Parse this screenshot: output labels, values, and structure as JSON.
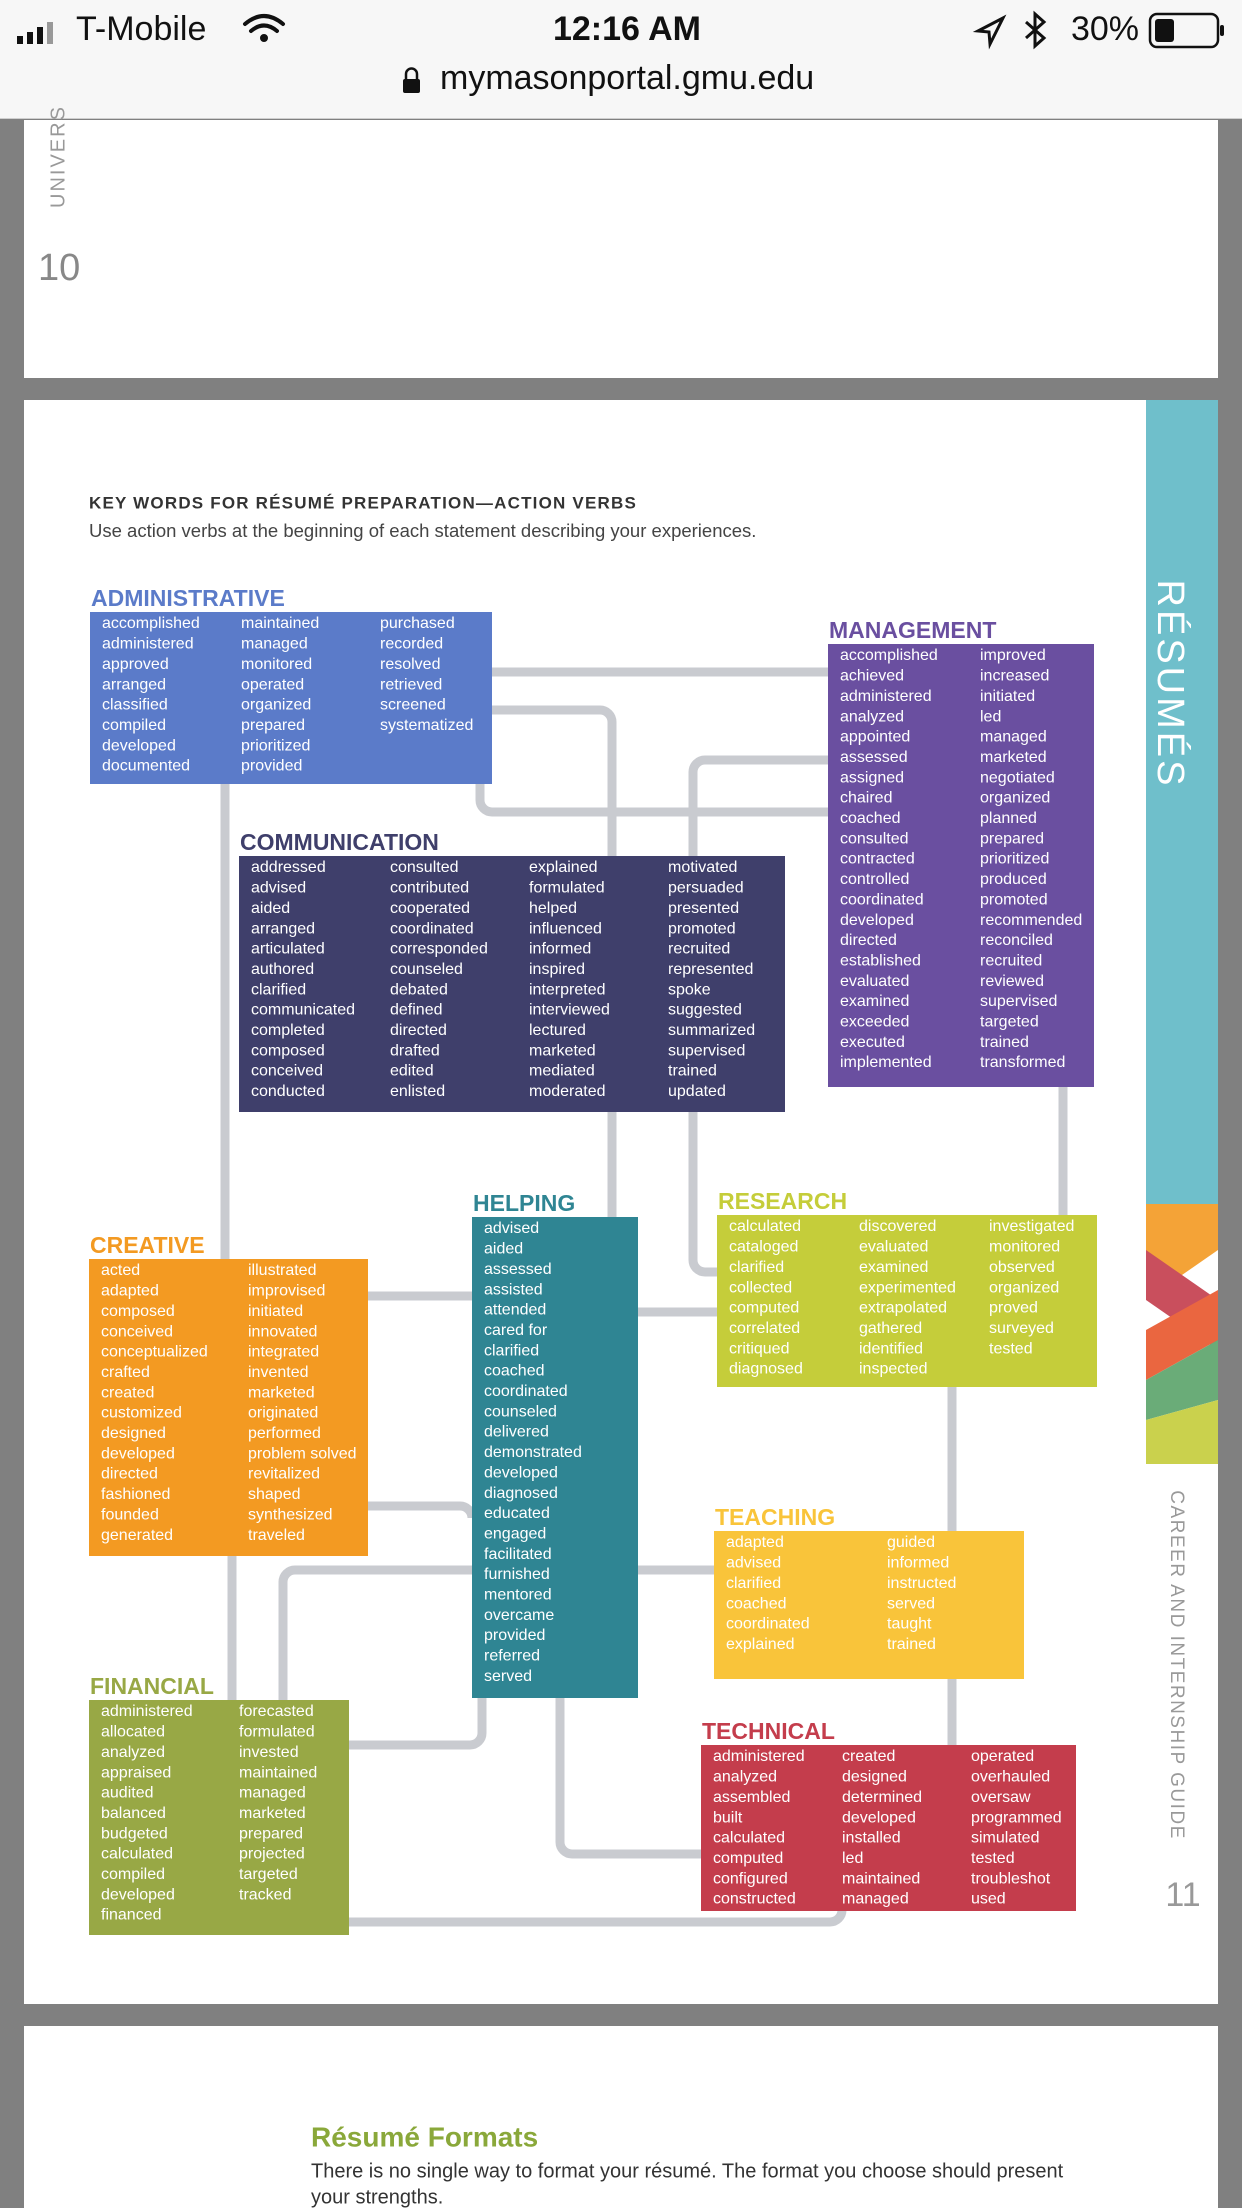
{
  "status_bar": {
    "carrier": "T-Mobile",
    "time": "12:16 AM",
    "battery": "30%",
    "url": "mymasonportal.gmu.edu"
  },
  "page_10": {
    "side_text": "UNIVERS",
    "page_number": "10"
  },
  "page_11": {
    "heading": "KEY WORDS FOR RÉSUMÉ PREPARATION—ACTION VERBS",
    "subheading": "Use action verbs at the beginning of each statement describing your experiences.",
    "side_title": "RÉSUMÉS",
    "side_guide": "CAREER AND INTERNSHIP GUIDE",
    "page_number": "11",
    "groups": [
      {
        "title": "ADMINISTRATIVE",
        "color": "#5b7bc9",
        "columns": [
          [
            "accomplished",
            "administered",
            "approved",
            "arranged",
            "classified",
            "compiled",
            "developed",
            "documented"
          ],
          [
            "maintained",
            "managed",
            "monitored",
            "operated",
            "organized",
            "prepared",
            "prioritized",
            "provided"
          ],
          [
            "purchased",
            "recorded",
            "resolved",
            "retrieved",
            "screened",
            "systematized"
          ]
        ]
      },
      {
        "title": "MANAGEMENT",
        "color": "#6a4fa0",
        "columns": [
          [
            "accomplished",
            "achieved",
            "administered",
            "analyzed",
            "appointed",
            "assessed",
            "assigned",
            "chaired",
            "coached",
            "consulted",
            "contracted",
            "controlled",
            "coordinated",
            "developed",
            "directed",
            "established",
            "evaluated",
            "examined",
            "exceeded",
            "executed",
            "implemented"
          ],
          [
            "improved",
            "increased",
            "initiated",
            "led",
            "managed",
            "marketed",
            "negotiated",
            "organized",
            "planned",
            "prepared",
            "prioritized",
            "produced",
            "promoted",
            "recommended",
            "reconciled",
            "recruited",
            "reviewed",
            "supervised",
            "targeted",
            "trained",
            "transformed"
          ]
        ]
      },
      {
        "title": "COMMUNICATION",
        "color": "#3f3f6b",
        "columns": [
          [
            "addressed",
            "advised",
            "aided",
            "arranged",
            "articulated",
            "authored",
            "clarified",
            "communicated",
            "completed",
            "composed",
            "conceived",
            "conducted"
          ],
          [
            "consulted",
            "contributed",
            "cooperated",
            "coordinated",
            "corresponded",
            "counseled",
            "debated",
            "defined",
            "directed",
            "drafted",
            "edited",
            "enlisted"
          ],
          [
            "explained",
            "formulated",
            "helped",
            "influenced",
            "informed",
            "inspired",
            "interpreted",
            "interviewed",
            "lectured",
            "marketed",
            "mediated",
            "moderated"
          ],
          [
            "motivated",
            "persuaded",
            "presented",
            "promoted",
            "recruited",
            "represented",
            "spoke",
            "suggested",
            "summarized",
            "supervised",
            "trained",
            "updated"
          ]
        ]
      },
      {
        "title": "HELPING",
        "color": "#2f8593",
        "columns": [
          [
            "advised",
            "aided",
            "assessed",
            "assisted",
            "attended",
            "cared for",
            "clarified",
            "coached",
            "coordinated",
            "counseled",
            "delivered",
            "demonstrated",
            "developed",
            "diagnosed",
            "educated",
            "engaged",
            "facilitated",
            "furnished",
            "mentored",
            "overcame",
            "provided",
            "referred",
            "served"
          ]
        ]
      },
      {
        "title": "RESEARCH",
        "color": "#c5cd3a",
        "columns": [
          [
            "calculated",
            "cataloged",
            "clarified",
            "collected",
            "computed",
            "correlated",
            "critiqued",
            "diagnosed"
          ],
          [
            "discovered",
            "evaluated",
            "examined",
            "experimented",
            "extrapolated",
            "gathered",
            "identified",
            "inspected"
          ],
          [
            "investigated",
            "monitored",
            "observed",
            "organized",
            "proved",
            "surveyed",
            "tested"
          ]
        ]
      },
      {
        "title": "CREATIVE",
        "color": "#f39a22",
        "columns": [
          [
            "acted",
            "adapted",
            "composed",
            "conceived",
            "conceptualized",
            "crafted",
            "created",
            "customized",
            "designed",
            "developed",
            "directed",
            "fashioned",
            "founded",
            "generated"
          ],
          [
            "illustrated",
            "improvised",
            "initiated",
            "innovated",
            "integrated",
            "invented",
            "marketed",
            "originated",
            "performed",
            "problem solved",
            "revitalized",
            "shaped",
            "synthesized",
            "traveled"
          ]
        ]
      },
      {
        "title": "TEACHING",
        "color": "#f9c43a",
        "columns": [
          [
            "adapted",
            "advised",
            "clarified",
            "coached",
            "coordinated",
            "explained"
          ],
          [
            "guided",
            "informed",
            "instructed",
            "served",
            "taught",
            "trained"
          ]
        ]
      },
      {
        "title": "FINANCIAL",
        "color": "#98a845",
        "columns": [
          [
            "administered",
            "allocated",
            "analyzed",
            "appraised",
            "audited",
            "balanced",
            "budgeted",
            "calculated",
            "compiled",
            "developed",
            "financed"
          ],
          [
            "forecasted",
            "formulated",
            "invested",
            "maintained",
            "managed",
            "marketed",
            "prepared",
            "projected",
            "targeted",
            "tracked"
          ]
        ]
      },
      {
        "title": "TECHNICAL",
        "color": "#c43d4c",
        "columns": [
          [
            "administered",
            "analyzed",
            "assembled",
            "built",
            "calculated",
            "computed",
            "configured",
            "constructed"
          ],
          [
            "created",
            "designed",
            "determined",
            "developed",
            "installed",
            "led",
            "maintained",
            "managed"
          ],
          [
            "operated",
            "overhauled",
            "oversaw",
            "programmed",
            "simulated",
            "tested",
            "troubleshot",
            "used"
          ]
        ]
      }
    ]
  },
  "next_page": {
    "title": "Résumé Formats",
    "text_lines": [
      "There is no single way to format your résumé. The format you choose should present",
      "your strengths."
    ]
  }
}
